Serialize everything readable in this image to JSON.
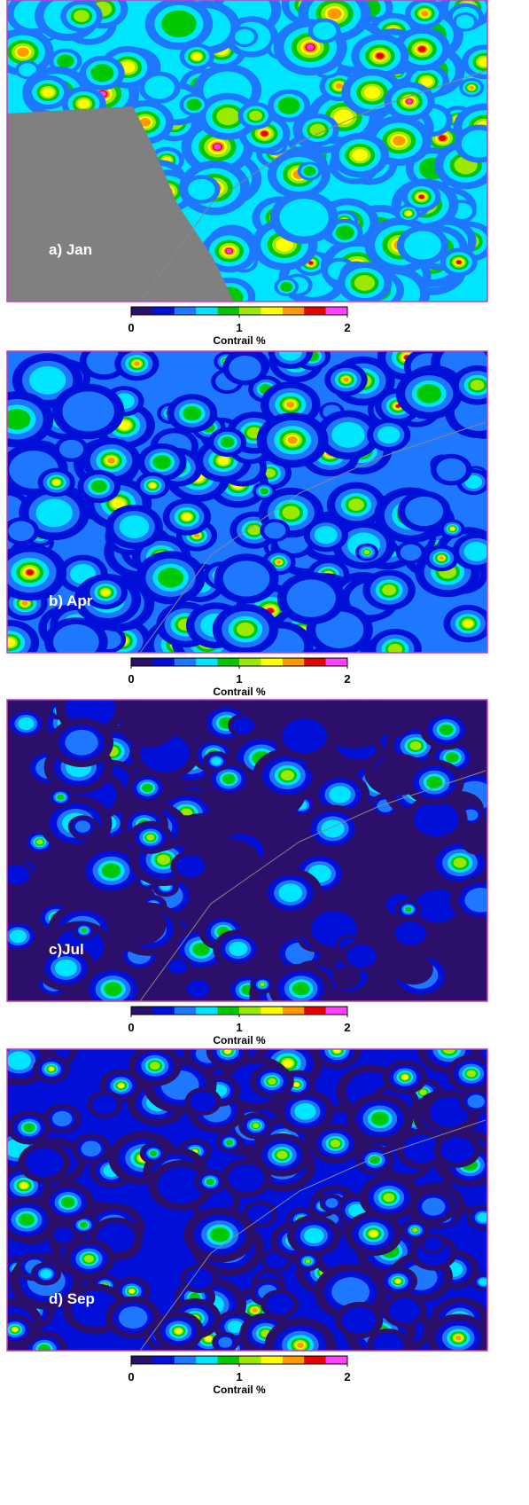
{
  "panels": [
    {
      "label": "a) Jan"
    },
    {
      "label": "b) Apr"
    },
    {
      "label": "c)Jul"
    },
    {
      "label": "d) Sep"
    }
  ],
  "colorbar": {
    "label": "Contrail %",
    "lim": [
      0,
      2
    ],
    "ticks": [
      0,
      1,
      2
    ],
    "colors": [
      "#2b0f6b",
      "#0010d8",
      "#1e78ff",
      "#00e5ff",
      "#00c800",
      "#9be800",
      "#ffff00",
      "#ff9900",
      "#e80000",
      "#ff40ff"
    ]
  }
}
